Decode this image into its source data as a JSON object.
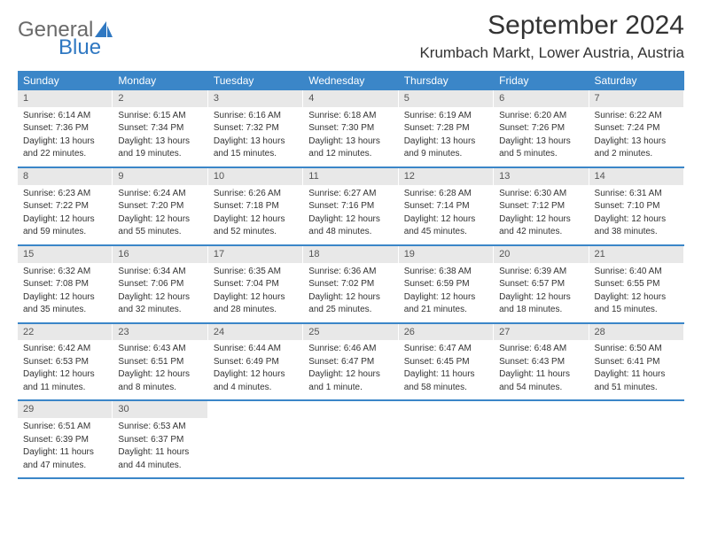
{
  "logo": {
    "word1": "General",
    "word2": "Blue",
    "icon_color": "#2f78c2",
    "text_color_1": "#6a6a6a",
    "text_color_2": "#2f78c2"
  },
  "header": {
    "month": "September 2024",
    "location": "Krumbach Markt, Lower Austria, Austria"
  },
  "colors": {
    "header_bg": "#3b86c8",
    "daynum_bg": "#e8e8e8",
    "border": "#3b86c8"
  },
  "weekdays": [
    "Sunday",
    "Monday",
    "Tuesday",
    "Wednesday",
    "Thursday",
    "Friday",
    "Saturday"
  ],
  "weeks": [
    [
      {
        "n": "1",
        "sr": "Sunrise: 6:14 AM",
        "ss": "Sunset: 7:36 PM",
        "d1": "Daylight: 13 hours",
        "d2": "and 22 minutes."
      },
      {
        "n": "2",
        "sr": "Sunrise: 6:15 AM",
        "ss": "Sunset: 7:34 PM",
        "d1": "Daylight: 13 hours",
        "d2": "and 19 minutes."
      },
      {
        "n": "3",
        "sr": "Sunrise: 6:16 AM",
        "ss": "Sunset: 7:32 PM",
        "d1": "Daylight: 13 hours",
        "d2": "and 15 minutes."
      },
      {
        "n": "4",
        "sr": "Sunrise: 6:18 AM",
        "ss": "Sunset: 7:30 PM",
        "d1": "Daylight: 13 hours",
        "d2": "and 12 minutes."
      },
      {
        "n": "5",
        "sr": "Sunrise: 6:19 AM",
        "ss": "Sunset: 7:28 PM",
        "d1": "Daylight: 13 hours",
        "d2": "and 9 minutes."
      },
      {
        "n": "6",
        "sr": "Sunrise: 6:20 AM",
        "ss": "Sunset: 7:26 PM",
        "d1": "Daylight: 13 hours",
        "d2": "and 5 minutes."
      },
      {
        "n": "7",
        "sr": "Sunrise: 6:22 AM",
        "ss": "Sunset: 7:24 PM",
        "d1": "Daylight: 13 hours",
        "d2": "and 2 minutes."
      }
    ],
    [
      {
        "n": "8",
        "sr": "Sunrise: 6:23 AM",
        "ss": "Sunset: 7:22 PM",
        "d1": "Daylight: 12 hours",
        "d2": "and 59 minutes."
      },
      {
        "n": "9",
        "sr": "Sunrise: 6:24 AM",
        "ss": "Sunset: 7:20 PM",
        "d1": "Daylight: 12 hours",
        "d2": "and 55 minutes."
      },
      {
        "n": "10",
        "sr": "Sunrise: 6:26 AM",
        "ss": "Sunset: 7:18 PM",
        "d1": "Daylight: 12 hours",
        "d2": "and 52 minutes."
      },
      {
        "n": "11",
        "sr": "Sunrise: 6:27 AM",
        "ss": "Sunset: 7:16 PM",
        "d1": "Daylight: 12 hours",
        "d2": "and 48 minutes."
      },
      {
        "n": "12",
        "sr": "Sunrise: 6:28 AM",
        "ss": "Sunset: 7:14 PM",
        "d1": "Daylight: 12 hours",
        "d2": "and 45 minutes."
      },
      {
        "n": "13",
        "sr": "Sunrise: 6:30 AM",
        "ss": "Sunset: 7:12 PM",
        "d1": "Daylight: 12 hours",
        "d2": "and 42 minutes."
      },
      {
        "n": "14",
        "sr": "Sunrise: 6:31 AM",
        "ss": "Sunset: 7:10 PM",
        "d1": "Daylight: 12 hours",
        "d2": "and 38 minutes."
      }
    ],
    [
      {
        "n": "15",
        "sr": "Sunrise: 6:32 AM",
        "ss": "Sunset: 7:08 PM",
        "d1": "Daylight: 12 hours",
        "d2": "and 35 minutes."
      },
      {
        "n": "16",
        "sr": "Sunrise: 6:34 AM",
        "ss": "Sunset: 7:06 PM",
        "d1": "Daylight: 12 hours",
        "d2": "and 32 minutes."
      },
      {
        "n": "17",
        "sr": "Sunrise: 6:35 AM",
        "ss": "Sunset: 7:04 PM",
        "d1": "Daylight: 12 hours",
        "d2": "and 28 minutes."
      },
      {
        "n": "18",
        "sr": "Sunrise: 6:36 AM",
        "ss": "Sunset: 7:02 PM",
        "d1": "Daylight: 12 hours",
        "d2": "and 25 minutes."
      },
      {
        "n": "19",
        "sr": "Sunrise: 6:38 AM",
        "ss": "Sunset: 6:59 PM",
        "d1": "Daylight: 12 hours",
        "d2": "and 21 minutes."
      },
      {
        "n": "20",
        "sr": "Sunrise: 6:39 AM",
        "ss": "Sunset: 6:57 PM",
        "d1": "Daylight: 12 hours",
        "d2": "and 18 minutes."
      },
      {
        "n": "21",
        "sr": "Sunrise: 6:40 AM",
        "ss": "Sunset: 6:55 PM",
        "d1": "Daylight: 12 hours",
        "d2": "and 15 minutes."
      }
    ],
    [
      {
        "n": "22",
        "sr": "Sunrise: 6:42 AM",
        "ss": "Sunset: 6:53 PM",
        "d1": "Daylight: 12 hours",
        "d2": "and 11 minutes."
      },
      {
        "n": "23",
        "sr": "Sunrise: 6:43 AM",
        "ss": "Sunset: 6:51 PM",
        "d1": "Daylight: 12 hours",
        "d2": "and 8 minutes."
      },
      {
        "n": "24",
        "sr": "Sunrise: 6:44 AM",
        "ss": "Sunset: 6:49 PM",
        "d1": "Daylight: 12 hours",
        "d2": "and 4 minutes."
      },
      {
        "n": "25",
        "sr": "Sunrise: 6:46 AM",
        "ss": "Sunset: 6:47 PM",
        "d1": "Daylight: 12 hours",
        "d2": "and 1 minute."
      },
      {
        "n": "26",
        "sr": "Sunrise: 6:47 AM",
        "ss": "Sunset: 6:45 PM",
        "d1": "Daylight: 11 hours",
        "d2": "and 58 minutes."
      },
      {
        "n": "27",
        "sr": "Sunrise: 6:48 AM",
        "ss": "Sunset: 6:43 PM",
        "d1": "Daylight: 11 hours",
        "d2": "and 54 minutes."
      },
      {
        "n": "28",
        "sr": "Sunrise: 6:50 AM",
        "ss": "Sunset: 6:41 PM",
        "d1": "Daylight: 11 hours",
        "d2": "and 51 minutes."
      }
    ],
    [
      {
        "n": "29",
        "sr": "Sunrise: 6:51 AM",
        "ss": "Sunset: 6:39 PM",
        "d1": "Daylight: 11 hours",
        "d2": "and 47 minutes."
      },
      {
        "n": "30",
        "sr": "Sunrise: 6:53 AM",
        "ss": "Sunset: 6:37 PM",
        "d1": "Daylight: 11 hours",
        "d2": "and 44 minutes."
      },
      null,
      null,
      null,
      null,
      null
    ]
  ]
}
